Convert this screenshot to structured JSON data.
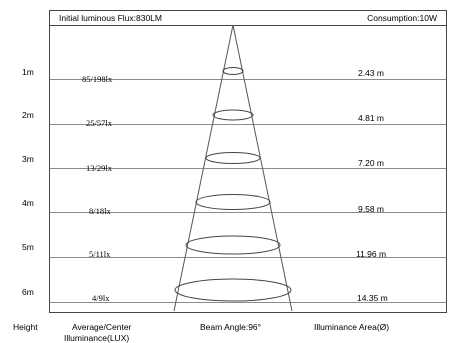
{
  "header": {
    "flux_label": "Initial luminous Flux:830LM",
    "consumption_label": "Consumption:10W"
  },
  "rows": [
    {
      "height": "1m",
      "illuminance": "85/198lx",
      "area": "2.43 m"
    },
    {
      "height": "2m",
      "illuminance": "25/57lx",
      "area": "4.81 m"
    },
    {
      "height": "3m",
      "illuminance": "13/29lx",
      "area": "7.20 m"
    },
    {
      "height": "4m",
      "illuminance": "8/18lx",
      "area": "9.58 m"
    },
    {
      "height": "5m",
      "illuminance": "5/11lx",
      "area": "11.96 m"
    },
    {
      "height": "6m",
      "illuminance": "4/9lx",
      "area": "14.35 m"
    }
  ],
  "footer": {
    "height_label": "Height",
    "illuminance_label_line1": "Average/Center",
    "illuminance_label_line2": "Illuminance(LUX)",
    "beam_angle_label": "Beam Angle:96°",
    "area_label": "Illuminance Area(Ø)"
  },
  "colors": {
    "lines": "#555555",
    "border": "#444444",
    "background": "#ffffff"
  }
}
